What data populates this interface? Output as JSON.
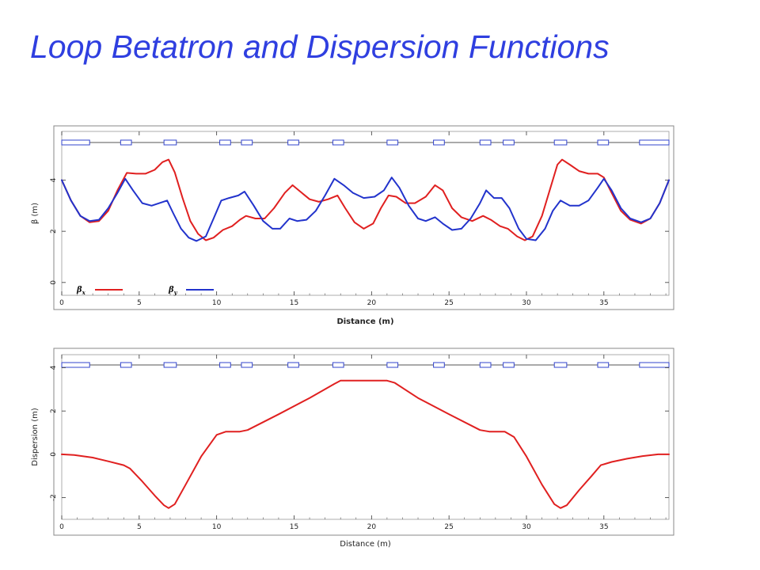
{
  "page_title": "Loop Betatron and Dispersion Functions",
  "colors": {
    "title": "#2f3fe0",
    "beta_x": "#e02020",
    "beta_y": "#2233cc",
    "magnet": "#3344cc",
    "frame": "#888888"
  },
  "magnet_lattice": [
    {
      "start": 0.0,
      "end": 1.8
    },
    {
      "start": 3.8,
      "end": 4.5
    },
    {
      "start": 6.6,
      "end": 7.4
    },
    {
      "start": 10.2,
      "end": 10.9
    },
    {
      "start": 11.6,
      "end": 12.3
    },
    {
      "start": 14.6,
      "end": 15.3
    },
    {
      "start": 17.5,
      "end": 18.2
    },
    {
      "start": 21.0,
      "end": 21.7
    },
    {
      "start": 24.0,
      "end": 24.7
    },
    {
      "start": 27.0,
      "end": 27.7
    },
    {
      "start": 28.5,
      "end": 29.2
    },
    {
      "start": 31.8,
      "end": 32.6
    },
    {
      "start": 34.6,
      "end": 35.3
    },
    {
      "start": 37.3,
      "end": 39.2
    }
  ],
  "chart_data": [
    {
      "type": "line",
      "xlabel": "Distance (m)",
      "ylabel": "β (m)",
      "xlim": [
        0,
        39.2
      ],
      "ylim": [
        -0.5,
        5.9
      ],
      "xticks": [
        0,
        5,
        10,
        15,
        20,
        25,
        30,
        35
      ],
      "yticks": [
        0,
        2,
        4
      ],
      "grid": false,
      "legend": "bottom-left",
      "series": [
        {
          "name": "βx",
          "legend_main": "β",
          "legend_sub": "x",
          "color": "#e02020",
          "points": [
            [
              0,
              4.0
            ],
            [
              0.6,
              3.2
            ],
            [
              1.2,
              2.6
            ],
            [
              1.8,
              2.35
            ],
            [
              2.4,
              2.4
            ],
            [
              3.0,
              2.8
            ],
            [
              3.6,
              3.6
            ],
            [
              4.2,
              4.28
            ],
            [
              4.8,
              4.25
            ],
            [
              5.4,
              4.25
            ],
            [
              6.0,
              4.4
            ],
            [
              6.5,
              4.7
            ],
            [
              6.9,
              4.8
            ],
            [
              7.3,
              4.3
            ],
            [
              7.8,
              3.3
            ],
            [
              8.3,
              2.4
            ],
            [
              8.8,
              1.9
            ],
            [
              9.3,
              1.65
            ],
            [
              9.8,
              1.75
            ],
            [
              10.4,
              2.05
            ],
            [
              11.0,
              2.2
            ],
            [
              11.5,
              2.45
            ],
            [
              11.9,
              2.6
            ],
            [
              12.5,
              2.5
            ],
            [
              13.1,
              2.5
            ],
            [
              13.7,
              2.9
            ],
            [
              14.4,
              3.5
            ],
            [
              14.9,
              3.8
            ],
            [
              15.4,
              3.55
            ],
            [
              16.0,
              3.25
            ],
            [
              16.6,
              3.15
            ],
            [
              17.2,
              3.25
            ],
            [
              17.8,
              3.4
            ],
            [
              18.3,
              2.9
            ],
            [
              18.9,
              2.35
            ],
            [
              19.5,
              2.1
            ],
            [
              20.1,
              2.3
            ],
            [
              20.6,
              2.9
            ],
            [
              21.1,
              3.4
            ],
            [
              21.6,
              3.35
            ],
            [
              22.2,
              3.1
            ],
            [
              22.8,
              3.1
            ],
            [
              23.5,
              3.35
            ],
            [
              24.1,
              3.8
            ],
            [
              24.6,
              3.6
            ],
            [
              25.2,
              2.9
            ],
            [
              25.8,
              2.55
            ],
            [
              26.5,
              2.4
            ],
            [
              27.2,
              2.6
            ],
            [
              27.7,
              2.45
            ],
            [
              28.3,
              2.2
            ],
            [
              28.8,
              2.1
            ],
            [
              29.4,
              1.8
            ],
            [
              29.9,
              1.65
            ],
            [
              30.4,
              1.8
            ],
            [
              31.0,
              2.6
            ],
            [
              31.6,
              3.8
            ],
            [
              32.0,
              4.6
            ],
            [
              32.3,
              4.8
            ],
            [
              32.8,
              4.6
            ],
            [
              33.4,
              4.35
            ],
            [
              34.0,
              4.25
            ],
            [
              34.6,
              4.25
            ],
            [
              35.0,
              4.1
            ],
            [
              35.5,
              3.5
            ],
            [
              36.1,
              2.8
            ],
            [
              36.7,
              2.45
            ],
            [
              37.4,
              2.3
            ],
            [
              38.0,
              2.5
            ],
            [
              38.6,
              3.1
            ],
            [
              39.2,
              4.0
            ]
          ]
        },
        {
          "name": "βy",
          "legend_main": "β",
          "legend_sub": "y",
          "color": "#2233cc",
          "points": [
            [
              0,
              4.0
            ],
            [
              0.6,
              3.2
            ],
            [
              1.2,
              2.6
            ],
            [
              1.8,
              2.4
            ],
            [
              2.4,
              2.45
            ],
            [
              3.0,
              2.9
            ],
            [
              3.6,
              3.5
            ],
            [
              4.1,
              4.05
            ],
            [
              4.6,
              3.6
            ],
            [
              5.2,
              3.1
            ],
            [
              5.8,
              3.0
            ],
            [
              6.3,
              3.1
            ],
            [
              6.8,
              3.2
            ],
            [
              7.2,
              2.7
            ],
            [
              7.7,
              2.1
            ],
            [
              8.2,
              1.75
            ],
            [
              8.7,
              1.62
            ],
            [
              9.3,
              1.8
            ],
            [
              9.8,
              2.5
            ],
            [
              10.3,
              3.2
            ],
            [
              10.8,
              3.3
            ],
            [
              11.4,
              3.4
            ],
            [
              11.8,
              3.55
            ],
            [
              12.4,
              3.0
            ],
            [
              13.0,
              2.4
            ],
            [
              13.6,
              2.1
            ],
            [
              14.1,
              2.1
            ],
            [
              14.7,
              2.5
            ],
            [
              15.2,
              2.4
            ],
            [
              15.8,
              2.45
            ],
            [
              16.4,
              2.8
            ],
            [
              17.0,
              3.4
            ],
            [
              17.6,
              4.05
            ],
            [
              18.2,
              3.8
            ],
            [
              18.8,
              3.5
            ],
            [
              19.5,
              3.3
            ],
            [
              20.2,
              3.35
            ],
            [
              20.8,
              3.6
            ],
            [
              21.3,
              4.1
            ],
            [
              21.8,
              3.7
            ],
            [
              22.4,
              3.0
            ],
            [
              23.0,
              2.5
            ],
            [
              23.5,
              2.4
            ],
            [
              24.1,
              2.55
            ],
            [
              24.6,
              2.3
            ],
            [
              25.2,
              2.05
            ],
            [
              25.8,
              2.1
            ],
            [
              26.4,
              2.5
            ],
            [
              27.0,
              3.1
            ],
            [
              27.4,
              3.6
            ],
            [
              27.9,
              3.3
            ],
            [
              28.4,
              3.3
            ],
            [
              28.9,
              2.9
            ],
            [
              29.5,
              2.1
            ],
            [
              30.0,
              1.7
            ],
            [
              30.6,
              1.65
            ],
            [
              31.2,
              2.1
            ],
            [
              31.7,
              2.8
            ],
            [
              32.2,
              3.2
            ],
            [
              32.8,
              3.0
            ],
            [
              33.4,
              3.0
            ],
            [
              34.0,
              3.2
            ],
            [
              34.6,
              3.7
            ],
            [
              35.0,
              4.05
            ],
            [
              35.5,
              3.6
            ],
            [
              36.1,
              2.9
            ],
            [
              36.7,
              2.5
            ],
            [
              37.4,
              2.35
            ],
            [
              38.0,
              2.5
            ],
            [
              38.6,
              3.1
            ],
            [
              39.2,
              4.0
            ]
          ]
        }
      ]
    },
    {
      "type": "line",
      "xlabel": "Distance (m)",
      "ylabel": "Dispersion (m)",
      "xlim": [
        0,
        39.2
      ],
      "ylim": [
        -3.0,
        4.6
      ],
      "xticks": [
        0,
        5,
        10,
        15,
        20,
        25,
        30,
        35
      ],
      "yticks": [
        -2,
        0,
        2,
        4
      ],
      "grid": false,
      "series": [
        {
          "name": "",
          "color": "#e02020",
          "points": [
            [
              0,
              0.0
            ],
            [
              0.8,
              -0.03
            ],
            [
              2.0,
              -0.15
            ],
            [
              3.0,
              -0.32
            ],
            [
              4.0,
              -0.5
            ],
            [
              4.4,
              -0.65
            ],
            [
              5.2,
              -1.25
            ],
            [
              6.0,
              -1.9
            ],
            [
              6.6,
              -2.35
            ],
            [
              6.9,
              -2.48
            ],
            [
              7.3,
              -2.3
            ],
            [
              8.0,
              -1.4
            ],
            [
              9.0,
              -0.1
            ],
            [
              10.0,
              0.9
            ],
            [
              10.6,
              1.05
            ],
            [
              11.5,
              1.05
            ],
            [
              12.0,
              1.12
            ],
            [
              14.0,
              1.85
            ],
            [
              16.0,
              2.6
            ],
            [
              17.6,
              3.25
            ],
            [
              18.0,
              3.4
            ],
            [
              21.0,
              3.4
            ],
            [
              21.5,
              3.3
            ],
            [
              23.0,
              2.6
            ],
            [
              25.0,
              1.85
            ],
            [
              27.0,
              1.12
            ],
            [
              27.6,
              1.05
            ],
            [
              28.6,
              1.05
            ],
            [
              29.2,
              0.8
            ],
            [
              30.0,
              -0.1
            ],
            [
              31.0,
              -1.4
            ],
            [
              31.8,
              -2.3
            ],
            [
              32.2,
              -2.48
            ],
            [
              32.6,
              -2.35
            ],
            [
              33.4,
              -1.65
            ],
            [
              34.2,
              -1.0
            ],
            [
              34.8,
              -0.5
            ],
            [
              35.5,
              -0.35
            ],
            [
              36.5,
              -0.2
            ],
            [
              37.5,
              -0.08
            ],
            [
              38.5,
              0.0
            ],
            [
              39.2,
              0.0
            ]
          ]
        }
      ]
    }
  ]
}
